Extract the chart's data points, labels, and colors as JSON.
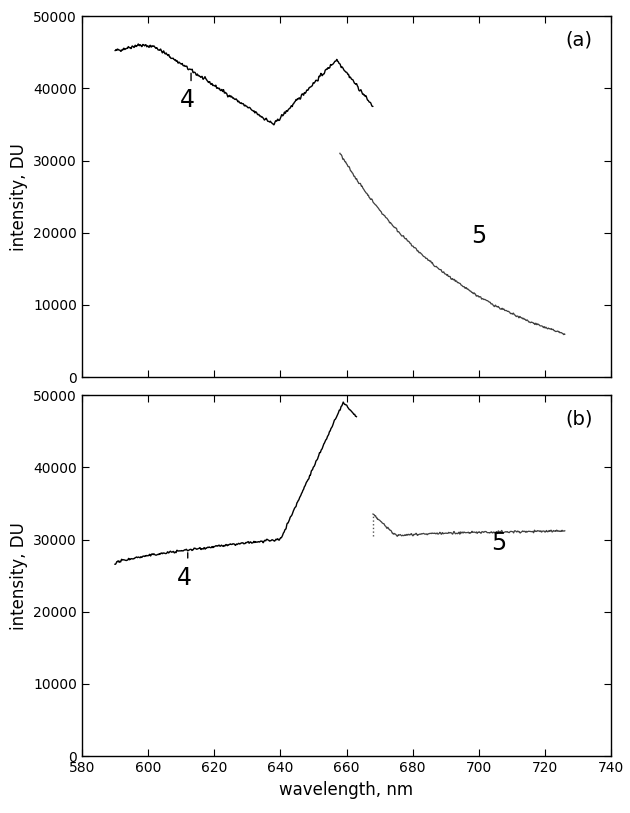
{
  "xlim": [
    580,
    740
  ],
  "ylim": [
    0,
    50000
  ],
  "yticks": [
    0,
    10000,
    20000,
    30000,
    40000,
    50000
  ],
  "xticks": [
    580,
    600,
    620,
    640,
    660,
    680,
    700,
    720,
    740
  ],
  "xlabel": "wavelength, nm",
  "ylabel": "intensity, DU",
  "panel_a_label": "(a)",
  "panel_b_label": "(b)",
  "label4": "4",
  "label5": "5",
  "bg_color": "#ffffff"
}
